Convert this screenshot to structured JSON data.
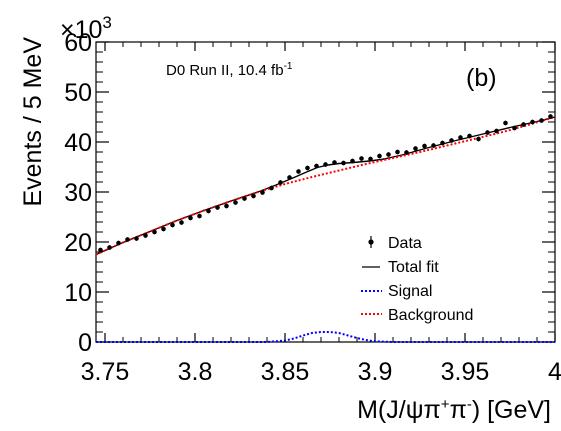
{
  "chart_data": {
    "type": "scatter",
    "panel_label": "(b)",
    "experiment_label": {
      "text": "D0 Run II, 10.4 fb",
      "superscript": "-1"
    },
    "ylabel": "Events / 5 MeV",
    "y_multiplier": {
      "base": "×10",
      "exp": "3"
    },
    "xlabel": {
      "pre": "M(J/",
      "psi": "ψ",
      "pi1": "π",
      "sup1": "+",
      "pi2": "π",
      "sup2": "-",
      "post": ") [GeV]"
    },
    "xlim": [
      3.745,
      4.0
    ],
    "ylim": [
      0,
      60
    ],
    "x_ticks": [
      {
        "value": 3.75,
        "label": "3.75"
      },
      {
        "value": 3.8,
        "label": "3.8"
      },
      {
        "value": 3.85,
        "label": "3.85"
      },
      {
        "value": 3.9,
        "label": "3.9"
      },
      {
        "value": 3.95,
        "label": "3.95"
      },
      {
        "value": 4.0,
        "label": "4"
      }
    ],
    "y_ticks": [
      {
        "value": 0,
        "label": "0"
      },
      {
        "value": 10,
        "label": "10"
      },
      {
        "value": 20,
        "label": "20"
      },
      {
        "value": 30,
        "label": "30"
      },
      {
        "value": 40,
        "label": "40"
      },
      {
        "value": 50,
        "label": "50"
      },
      {
        "value": 60,
        "label": "60"
      }
    ],
    "legend": {
      "placement": "bottom-right",
      "entries": [
        {
          "label": "Data",
          "style": "marker",
          "color": "#000000"
        },
        {
          "label": "Total fit",
          "style": "solid",
          "color": "#000000"
        },
        {
          "label": "Signal",
          "style": "dotted",
          "color": "#0000ff"
        },
        {
          "label": "Background",
          "style": "dotted",
          "color": "#ff0000"
        }
      ]
    },
    "series": [
      {
        "name": "Data",
        "x": [
          3.7475,
          3.7525,
          3.7575,
          3.7625,
          3.7675,
          3.7725,
          3.7775,
          3.7825,
          3.7875,
          3.7925,
          3.7975,
          3.8025,
          3.8075,
          3.8125,
          3.8175,
          3.8225,
          3.8275,
          3.8325,
          3.8375,
          3.8425,
          3.8475,
          3.8525,
          3.8575,
          3.8625,
          3.8675,
          3.8725,
          3.8775,
          3.8825,
          3.8875,
          3.8925,
          3.8975,
          3.9025,
          3.9075,
          3.9125,
          3.9175,
          3.9225,
          3.9275,
          3.9325,
          3.9375,
          3.9425,
          3.9475,
          3.9525,
          3.9575,
          3.9625,
          3.9675,
          3.9725,
          3.9775,
          3.9825,
          3.9875,
          3.9925,
          3.9975
        ],
        "y": [
          18.4,
          18.9,
          19.8,
          20.5,
          20.7,
          21.3,
          22.0,
          22.6,
          23.4,
          23.9,
          24.8,
          25.2,
          26.2,
          26.9,
          27.2,
          27.9,
          28.7,
          29.2,
          29.9,
          30.8,
          31.9,
          32.9,
          34.1,
          34.8,
          35.2,
          35.5,
          35.9,
          35.8,
          36.2,
          36.7,
          36.6,
          37.2,
          37.5,
          38.0,
          37.9,
          38.7,
          39.2,
          39.3,
          39.8,
          40.3,
          40.9,
          41.2,
          40.6,
          41.9,
          42.2,
          43.8,
          42.8,
          43.5,
          44.0,
          44.3,
          45.1
        ],
        "color": "#000000"
      },
      {
        "name": "Total fit",
        "x": [
          3.745,
          3.76,
          3.775,
          3.79,
          3.805,
          3.82,
          3.835,
          3.845,
          3.855,
          3.862,
          3.868,
          3.874,
          3.88,
          3.888,
          3.897,
          3.905,
          3.915,
          3.93,
          3.945,
          3.96,
          3.975,
          3.99,
          4.0
        ],
        "y": [
          17.5,
          19.9,
          22.1,
          24.3,
          26.3,
          28.2,
          30.0,
          31.4,
          32.9,
          34.0,
          34.9,
          35.4,
          35.7,
          35.9,
          36.2,
          36.6,
          37.4,
          38.9,
          40.3,
          41.6,
          42.9,
          44.1,
          45.0
        ],
        "color": "#000000"
      },
      {
        "name": "Signal",
        "x": [
          3.745,
          3.84,
          3.85,
          3.855,
          3.86,
          3.865,
          3.87,
          3.875,
          3.88,
          3.885,
          3.89,
          3.895,
          3.9,
          3.91,
          4.0
        ],
        "y": [
          0,
          0,
          0.3,
          0.7,
          1.3,
          1.8,
          2.0,
          2.0,
          1.8,
          1.3,
          0.8,
          0.4,
          0.15,
          0,
          0
        ],
        "color": "#0000ff"
      },
      {
        "name": "Background",
        "x": [
          3.745,
          3.76,
          3.775,
          3.79,
          3.805,
          3.82,
          3.835,
          3.85,
          3.865,
          3.88,
          3.895,
          3.91,
          3.925,
          3.94,
          3.955,
          3.97,
          3.985,
          4.0
        ],
        "y": [
          17.5,
          19.9,
          22.1,
          24.3,
          26.3,
          28.2,
          30.0,
          31.6,
          33.0,
          34.3,
          35.6,
          36.8,
          38.0,
          39.3,
          40.6,
          41.9,
          43.4,
          45.0
        ],
        "color": "#ff0000"
      }
    ]
  }
}
